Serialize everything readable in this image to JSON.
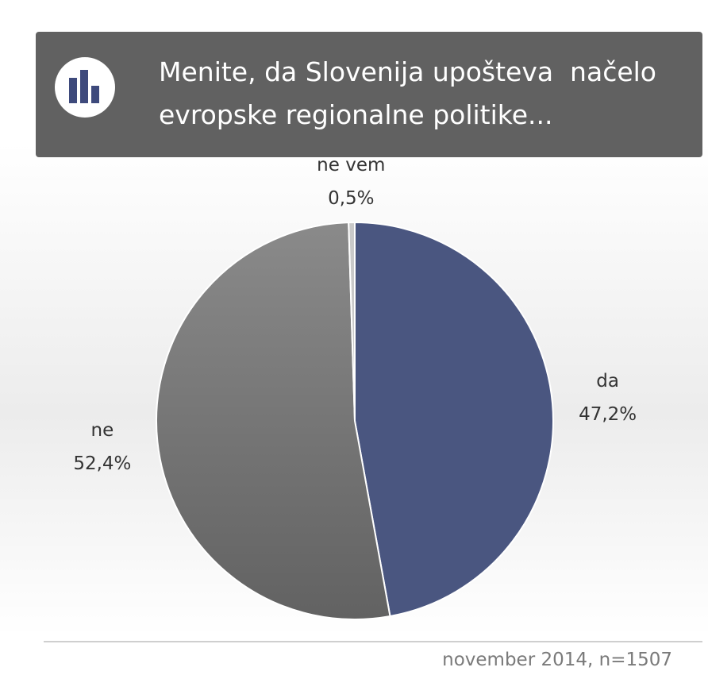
{
  "chart_data": {
    "type": "pie",
    "title": "Menite, da Slovenija upošteva  načelo evropske regionalne politike...",
    "categories": [
      "da",
      "ne",
      "ne vem"
    ],
    "values": [
      47.2,
      52.4,
      0.5
    ],
    "value_labels": [
      "47,2%",
      "52,4%",
      "0,5%"
    ],
    "colors": [
      "#4a5680",
      "#747474",
      "#c9c9c9"
    ],
    "note": "november 2014, n=1507"
  }
}
